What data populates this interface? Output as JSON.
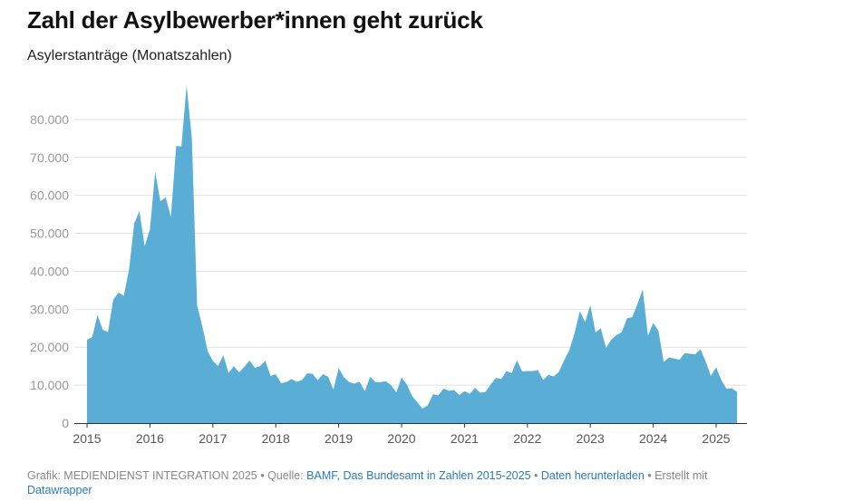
{
  "header": {
    "title": "Zahl der Asylbewerber*innen geht zurück",
    "subtitle": "Asylerstanträge (Monatszahlen)"
  },
  "footer": {
    "prefix": "Grafik: MEDIENDIENST INTEGRATION 2025 • Quelle: ",
    "source_link": "BAMF, Das Bundesamt in Zahlen 2015-2025",
    "sep1": " • ",
    "download_link": "Daten herunterladen",
    "sep2": " • Erstellt mit ",
    "tool_link": "Datawrapper"
  },
  "colors": {
    "area": "#5aaed6",
    "grid": "#e2e2e2",
    "axis": "#333333"
  },
  "chart_data": {
    "type": "area",
    "title": "Zahl der Asylbewerber*innen geht zurück",
    "subtitle": "Asylerstanträge (Monatszahlen)",
    "xlabel": "",
    "ylabel": "",
    "x_start": "2015-01",
    "x_interval": "month",
    "xlim": [
      "2015-01",
      "2025-06"
    ],
    "ylim": [
      0,
      90000
    ],
    "grid": true,
    "y_ticks": [
      {
        "value": 0,
        "label": "0"
      },
      {
        "value": 10000,
        "label": "10.000"
      },
      {
        "value": 20000,
        "label": "20.000"
      },
      {
        "value": 30000,
        "label": "30.000"
      },
      {
        "value": 40000,
        "label": "40.000"
      },
      {
        "value": 50000,
        "label": "50.000"
      },
      {
        "value": 60000,
        "label": "60.000"
      },
      {
        "value": 70000,
        "label": "70.000"
      },
      {
        "value": 80000,
        "label": "80.000"
      }
    ],
    "x_ticks": [
      "2015",
      "2016",
      "2017",
      "2018",
      "2019",
      "2020",
      "2021",
      "2022",
      "2023",
      "2024",
      "2025"
    ],
    "series": [
      {
        "values": [
          21900,
          22700,
          28500,
          24600,
          24000,
          32500,
          34400,
          33500,
          40300,
          52600,
          55800,
          46600,
          51100,
          66200,
          58400,
          59500,
          54300,
          73000,
          72900,
          89000,
          75000,
          31000,
          25500,
          19000,
          16400,
          15000,
          17900,
          13200,
          15000,
          13400,
          14800,
          16500,
          14600,
          15000,
          16400,
          12400,
          12900,
          10500,
          10800,
          11600,
          10900,
          11300,
          13100,
          13000,
          11300,
          12900,
          12200,
          8800,
          14500,
          12100,
          10800,
          10400,
          10900,
          8400,
          12200,
          10800,
          10800,
          11000,
          10000,
          8100,
          12000,
          10200,
          7100,
          5500,
          3800,
          4700,
          7600,
          7300,
          9100,
          8500,
          8700,
          7400,
          8400,
          7700,
          9300,
          8000,
          8200,
          10200,
          11900,
          11600,
          13700,
          13200,
          16500,
          13600,
          13700,
          13700,
          14000,
          11400,
          12700,
          12300,
          13500,
          16500,
          19200,
          23700,
          29500,
          26600,
          31100,
          23900,
          25000,
          19800,
          22000,
          23200,
          24000,
          27600,
          27900,
          31400,
          35200,
          23000,
          26400,
          24300,
          16100,
          17300,
          17000,
          16700,
          18400,
          18300,
          18100,
          19500,
          16300,
          12400,
          14700,
          11300,
          9000,
          9200,
          8200
        ]
      }
    ]
  }
}
